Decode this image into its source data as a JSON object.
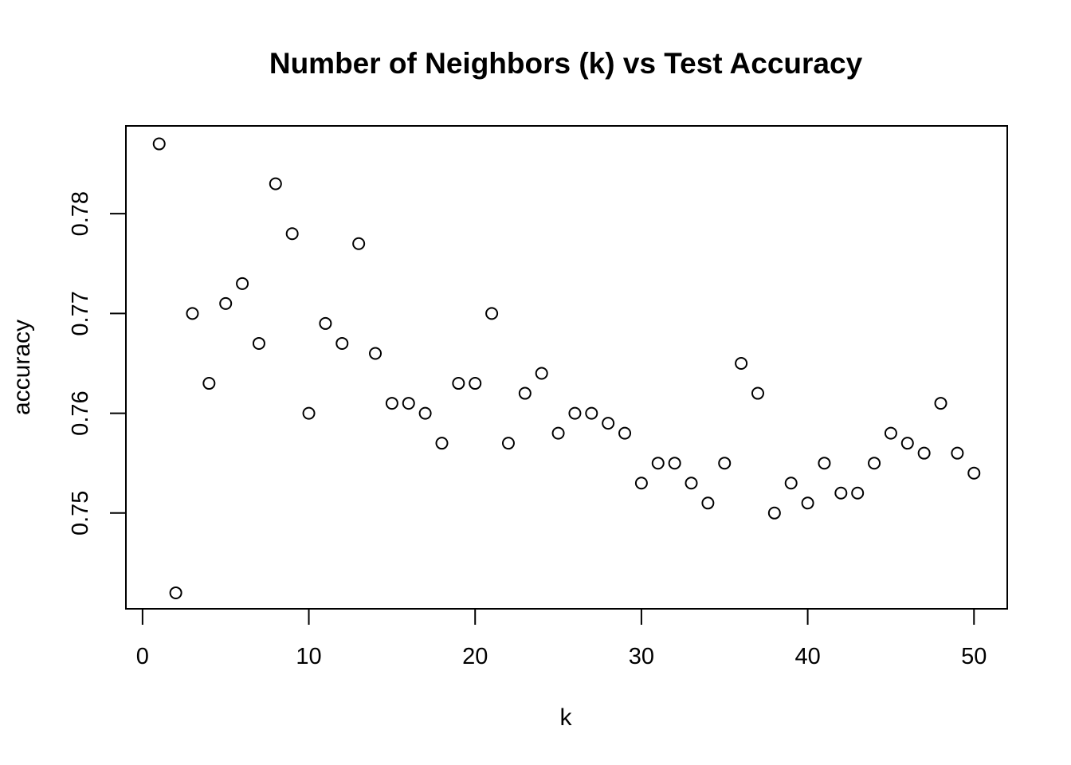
{
  "chart_data": {
    "type": "scatter",
    "title": "Number of Neighbors (k) vs Test Accuracy",
    "xlabel": "k",
    "ylabel": "accuracy",
    "xlim": [
      -1,
      52
    ],
    "ylim": [
      0.7404,
      0.7888
    ],
    "x_ticks": [
      0,
      10,
      20,
      30,
      40,
      50
    ],
    "x_tick_labels": [
      "0",
      "10",
      "20",
      "30",
      "40",
      "50"
    ],
    "y_ticks": [
      0.75,
      0.76,
      0.77,
      0.78
    ],
    "y_tick_labels": [
      "0.75",
      "0.76",
      "0.77",
      "0.78"
    ],
    "grid": false,
    "legend": "none",
    "marker": "open-circle",
    "x": [
      1,
      2,
      3,
      4,
      5,
      6,
      7,
      8,
      9,
      10,
      11,
      12,
      13,
      14,
      15,
      16,
      17,
      18,
      19,
      20,
      21,
      22,
      23,
      24,
      25,
      26,
      27,
      28,
      29,
      30,
      31,
      32,
      33,
      34,
      35,
      36,
      37,
      38,
      39,
      40,
      41,
      42,
      43,
      44,
      45,
      46,
      47,
      48,
      49,
      50
    ],
    "y": [
      0.787,
      0.742,
      0.77,
      0.763,
      0.771,
      0.773,
      0.767,
      0.783,
      0.778,
      0.76,
      0.769,
      0.767,
      0.777,
      0.766,
      0.761,
      0.761,
      0.76,
      0.757,
      0.763,
      0.763,
      0.77,
      0.757,
      0.762,
      0.764,
      0.758,
      0.76,
      0.76,
      0.759,
      0.758,
      0.753,
      0.755,
      0.755,
      0.753,
      0.751,
      0.755,
      0.765,
      0.762,
      0.75,
      0.753,
      0.751,
      0.755,
      0.752,
      0.752,
      0.755,
      0.758,
      0.757,
      0.756,
      0.761,
      0.756,
      0.754
    ]
  }
}
